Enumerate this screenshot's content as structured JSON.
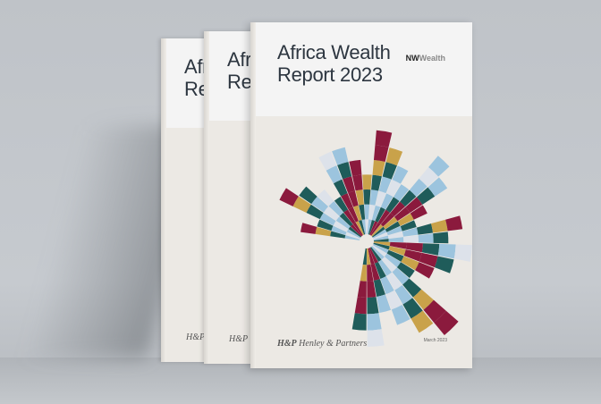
{
  "cover": {
    "title": "Africa Wealth\nReport 2023",
    "title_spine": "Afr\nRep",
    "brand_bold": "NW",
    "brand_light": "Wealth",
    "publisher_mark": "H&P",
    "publisher": "Henley & Partners",
    "date": "March 2023"
  },
  "colors": {
    "maroon": "#8b1a3d",
    "teal": "#1f5c5a",
    "gold": "#c9a24a",
    "light_blue": "#9cc4de",
    "pale": "#dde2ea",
    "cover": "#ece9e4",
    "background": "#c3c7cc"
  }
}
